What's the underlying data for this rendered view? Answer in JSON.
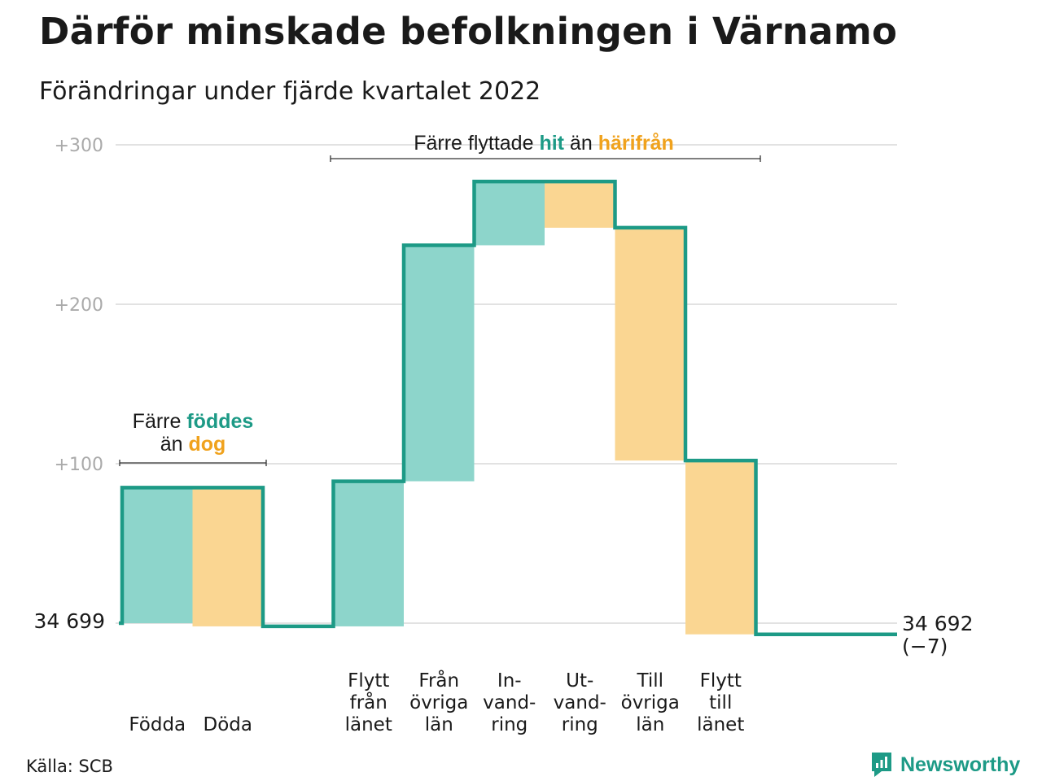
{
  "title": "Därför minskade befolkningen i Värnamo",
  "subtitle": "Förändringar under fjärde kvartalet 2022",
  "source": "Källa: SCB",
  "brand": "Newsworthy",
  "colors": {
    "in": "#8dd5cb",
    "out": "#fad692",
    "line": "#1d9a86",
    "hit_text": "#1d9a86",
    "bort_text": "#f0a21d"
  },
  "annotations": {
    "natural": {
      "l1a": "Färre ",
      "l1b": "föddes",
      "l2a": "än ",
      "l2b": "dog"
    },
    "migration": {
      "a": "Färre flyttade ",
      "b": "hit",
      "c": " än ",
      "d": "härifrån"
    }
  },
  "chart_data": {
    "type": "waterfall",
    "title": "Därför minskade befolkningen i Värnamo",
    "subtitle": "Förändringar under fjärde kvartalet 2022",
    "start": {
      "label": "34 699",
      "value": 34699
    },
    "end": {
      "label": "34 692",
      "change_label": "(−7)",
      "value": 34692
    },
    "yticks": [
      {
        "value": 100,
        "label": "+100"
      },
      {
        "value": 200,
        "label": "+200"
      },
      {
        "value": 300,
        "label": "+300"
      }
    ],
    "ylim": [
      -8,
      300
    ],
    "steps": [
      {
        "lines": [
          "Födda"
        ],
        "value": 85,
        "direction": "in"
      },
      {
        "lines": [
          "Döda"
        ],
        "value": -87,
        "direction": "out"
      },
      {
        "lines": [
          "Flytt",
          "från",
          "länet"
        ],
        "value": 91,
        "direction": "in"
      },
      {
        "lines": [
          "Från",
          "övriga",
          "län"
        ],
        "value": 148,
        "direction": "in"
      },
      {
        "lines": [
          "In-",
          "vand-",
          "ring"
        ],
        "value": 40,
        "direction": "in"
      },
      {
        "lines": [
          "Ut-",
          "vand-",
          "ring"
        ],
        "value": -29,
        "direction": "out"
      },
      {
        "lines": [
          "Till",
          "övriga",
          "län"
        ],
        "value": -146,
        "direction": "out"
      },
      {
        "lines": [
          "Flytt",
          "till",
          "länet"
        ],
        "value": -109,
        "direction": "out"
      }
    ]
  }
}
